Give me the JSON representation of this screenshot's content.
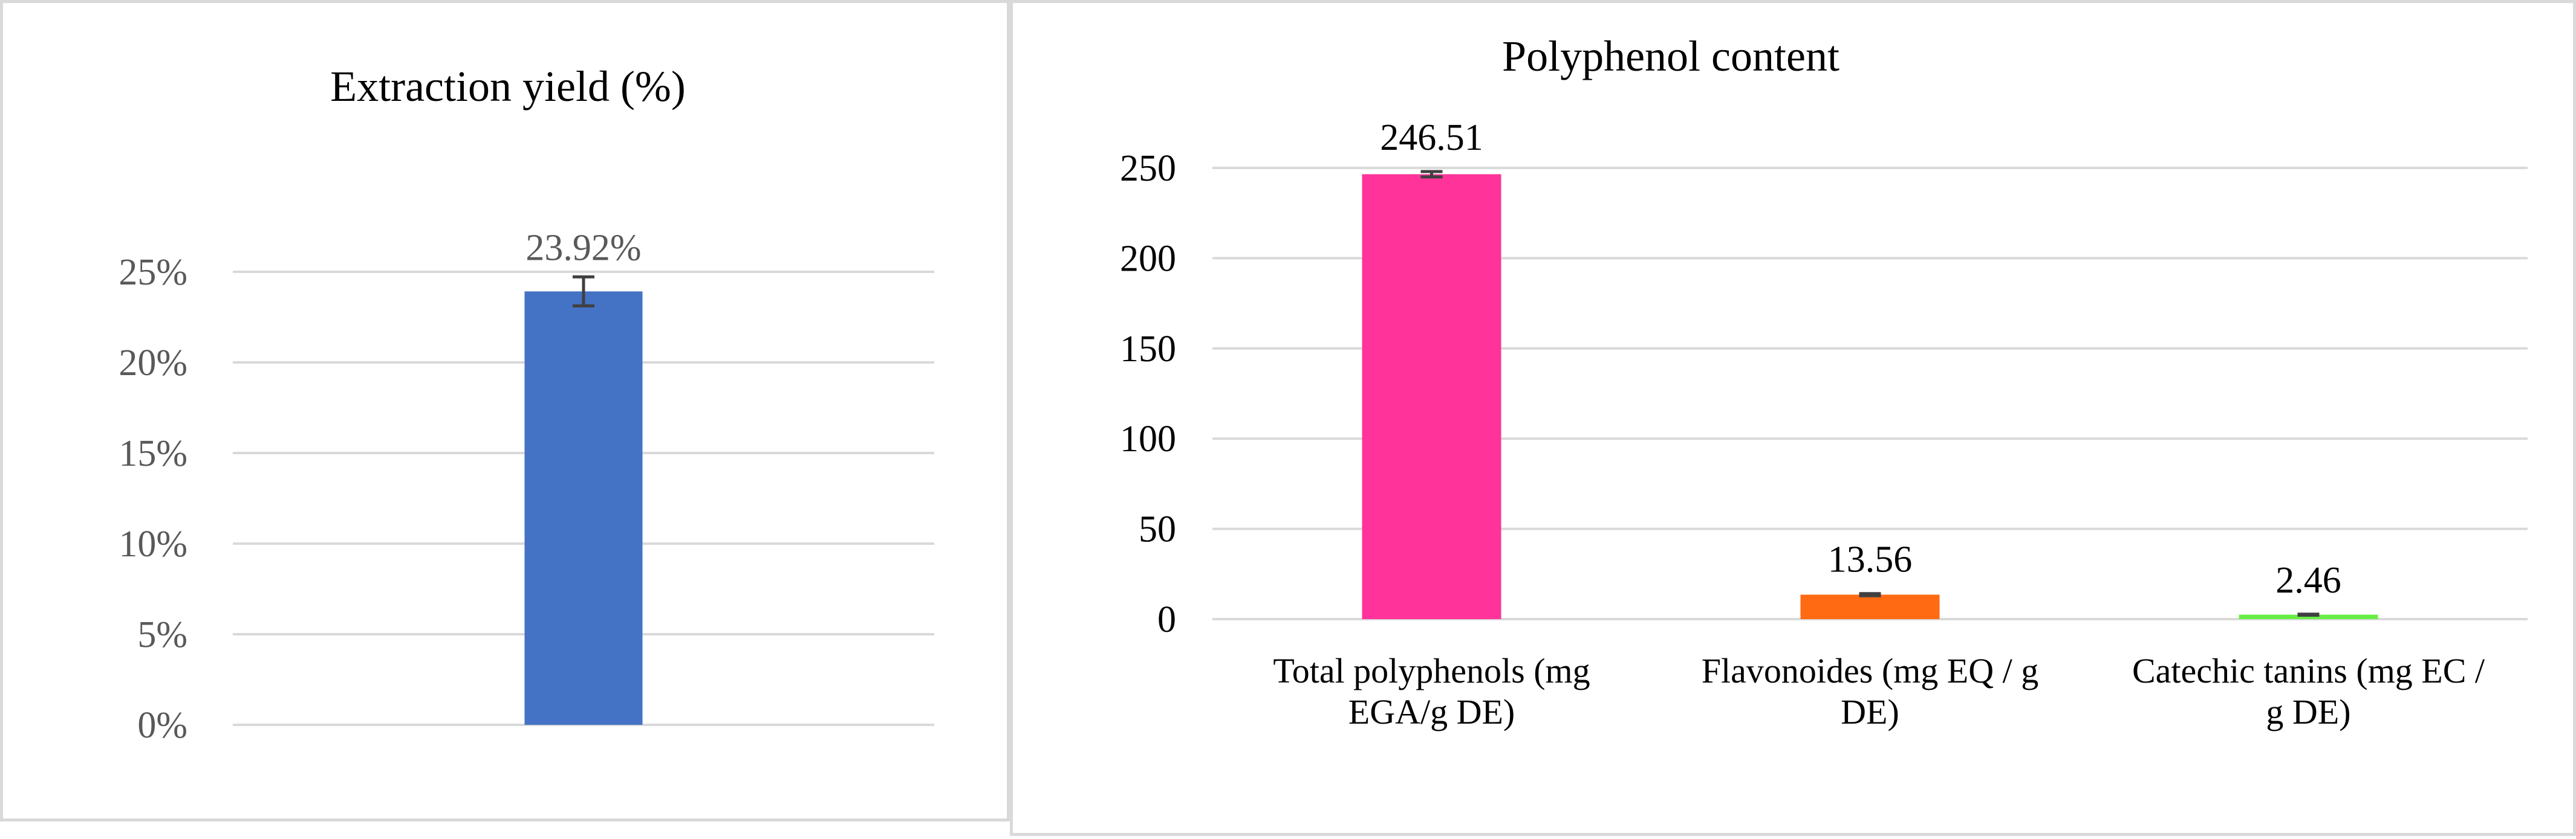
{
  "chart_data": [
    {
      "type": "bar",
      "title": "Extraction yield (%)",
      "categories": [
        ""
      ],
      "values": [
        23.92
      ],
      "errors": [
        0.8
      ],
      "data_labels": [
        "23.92%"
      ],
      "ylim": [
        0,
        25
      ],
      "yticks": [
        0,
        5,
        10,
        15,
        20,
        25
      ],
      "ytick_labels": [
        "0%",
        "5%",
        "10%",
        "15%",
        "20%",
        "25%"
      ],
      "grid": true,
      "legend": "none",
      "colors": [
        "#4472C4"
      ]
    },
    {
      "type": "bar",
      "title": "Polyphenol content",
      "categories": [
        [
          "Total polyphenols (mg",
          "EGA/g DE)"
        ],
        [
          "Flavonoides (mg EQ / g",
          "DE)"
        ],
        [
          "Catechic tanins  (mg EC /",
          "g DE)"
        ]
      ],
      "values": [
        246.51,
        13.56,
        2.46
      ],
      "errors": [
        1.5,
        0.6,
        0.3
      ],
      "data_labels": [
        "246.51",
        "13.56",
        "2.46"
      ],
      "ylim": [
        0,
        250
      ],
      "yticks": [
        0,
        50,
        100,
        150,
        200,
        250
      ],
      "ytick_labels": [
        "0",
        "50",
        "100",
        "150",
        "200",
        "250"
      ],
      "grid": true,
      "legend": "none",
      "colors": [
        "#FF3399",
        "#FF6A13",
        "#66EE44"
      ]
    }
  ]
}
